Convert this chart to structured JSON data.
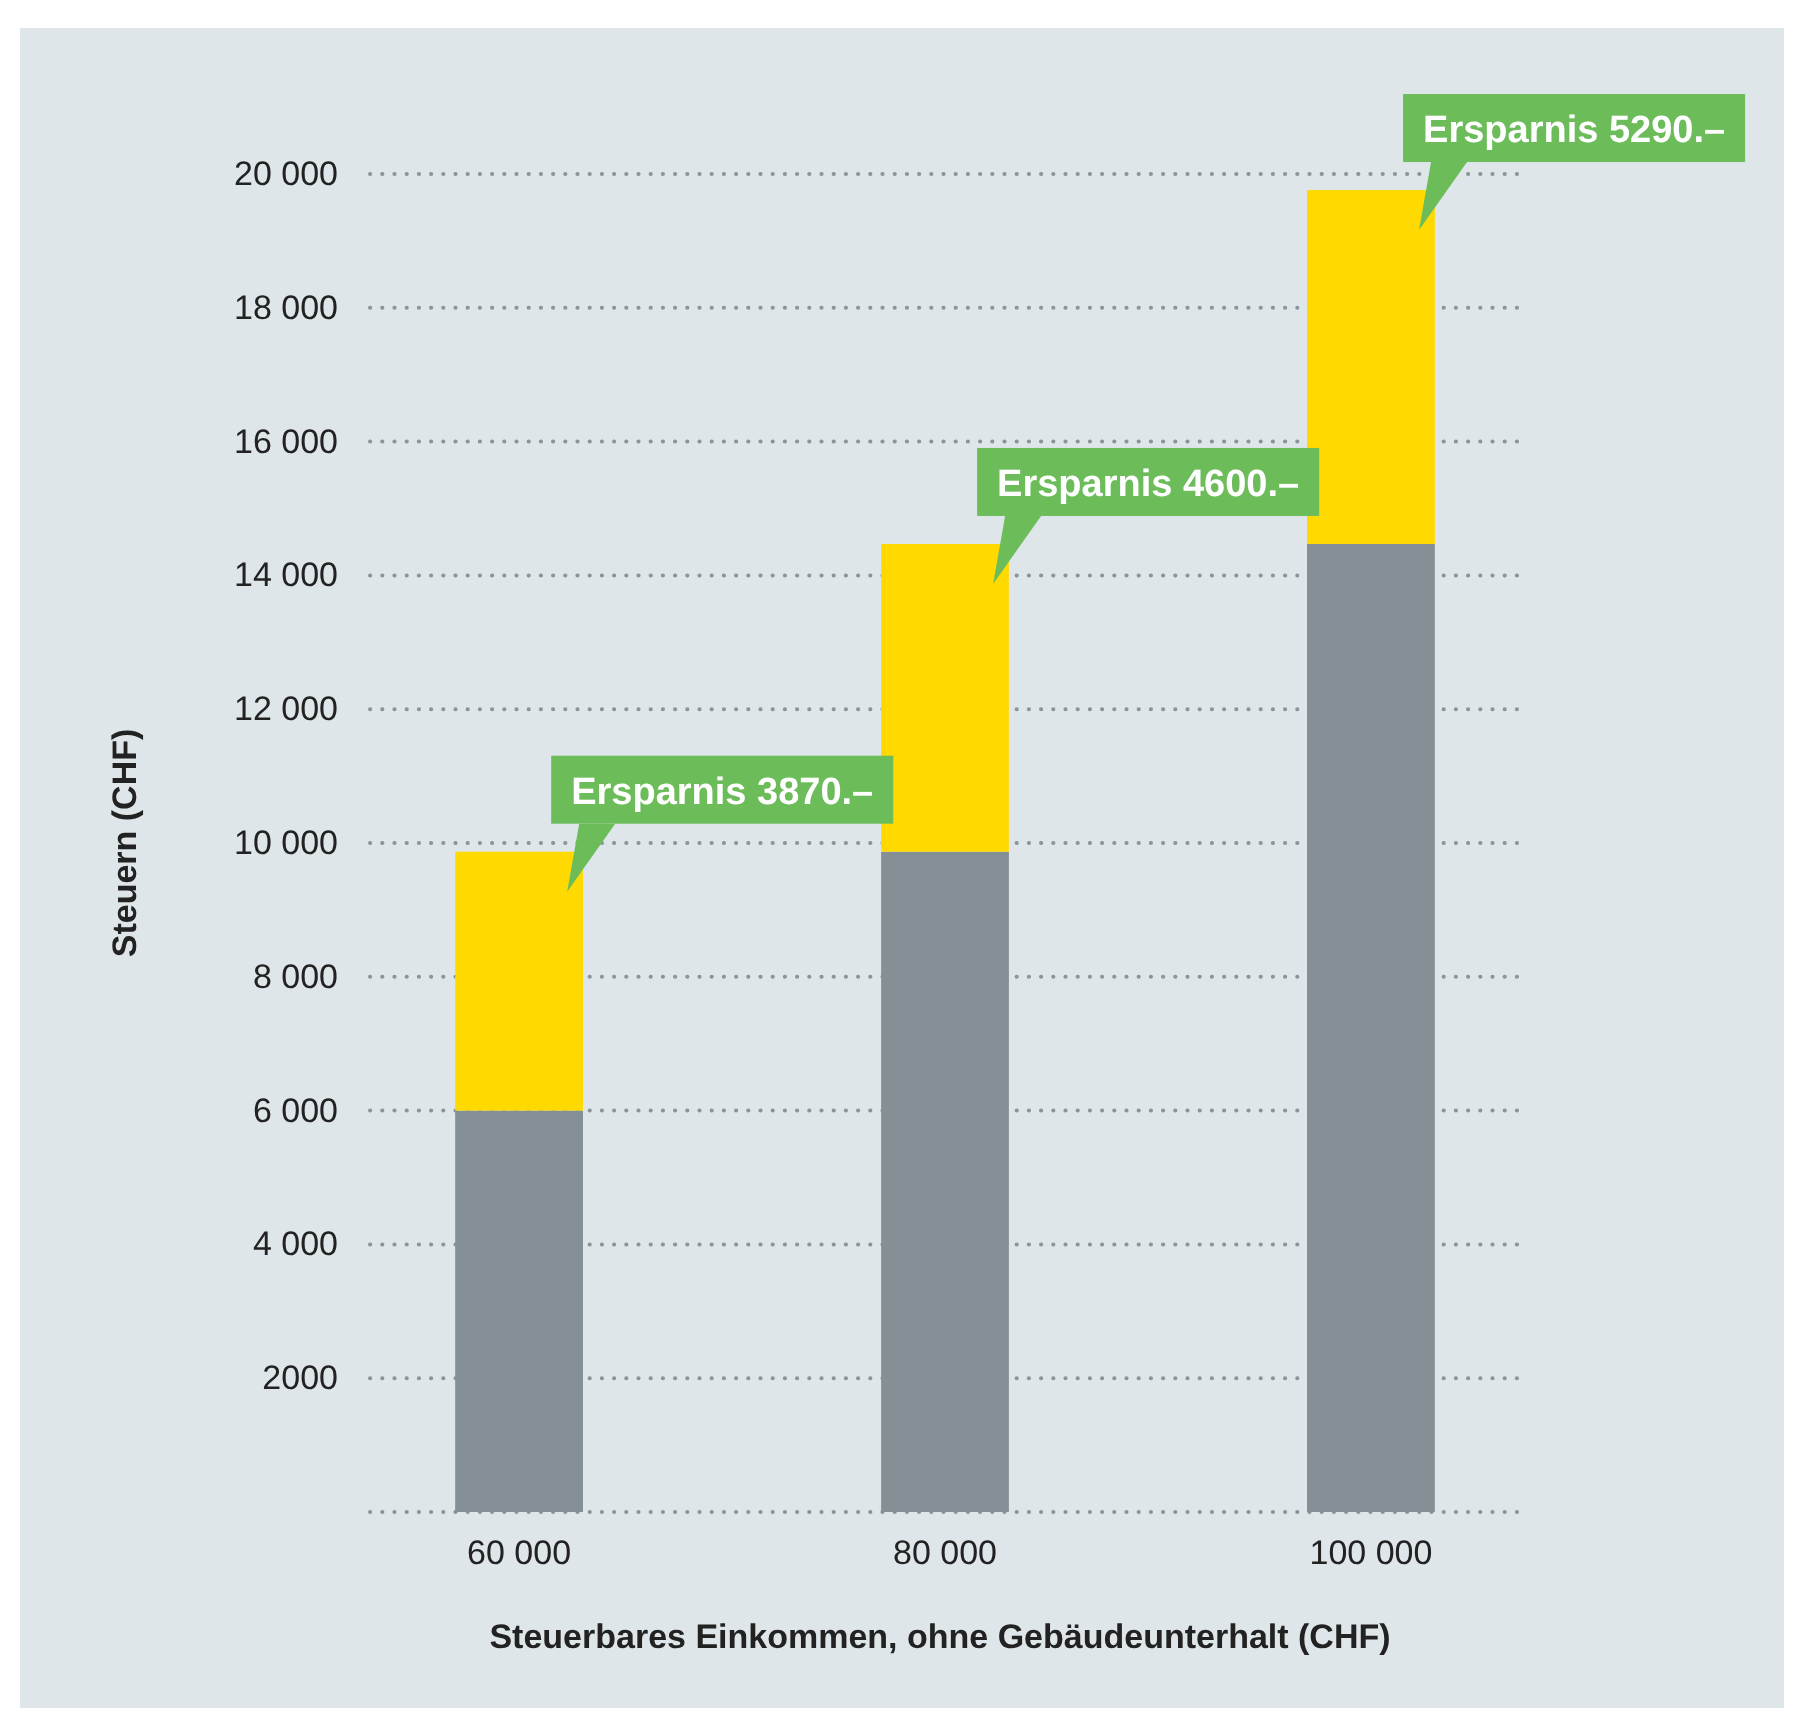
{
  "chart_data": {
    "type": "bar",
    "stacked": true,
    "xlabel": "Steuerbares Einkommen, ohne Gebäudeunterhalt (CHF)",
    "ylabel": "Steuern (CHF)",
    "categories": [
      "60 000",
      "80 000",
      "100 000"
    ],
    "series": [
      {
        "color": "#848f96",
        "values": [
          6000,
          9870,
          14470
        ]
      },
      {
        "color": "#ffd900",
        "values": [
          3870,
          4600,
          5290
        ]
      }
    ],
    "ylim": [
      0,
      20000
    ],
    "yticks": [
      {
        "value": 2000,
        "label": "2000"
      },
      {
        "value": 4000,
        "label": "4 000"
      },
      {
        "value": 6000,
        "label": "6 000"
      },
      {
        "value": 8000,
        "label": "8 000"
      },
      {
        "value": 10000,
        "label": "10 000"
      },
      {
        "value": 12000,
        "label": "12 000"
      },
      {
        "value": 14000,
        "label": "14 000"
      },
      {
        "value": 16000,
        "label": "16 000"
      },
      {
        "value": 18000,
        "label": "18 000"
      },
      {
        "value": 20000,
        "label": "20 000"
      }
    ],
    "grid": "y",
    "annotations": [
      "Ersparnis 3870.–",
      "Ersparnis 4600.–",
      "Ersparnis 5290.–"
    ]
  }
}
